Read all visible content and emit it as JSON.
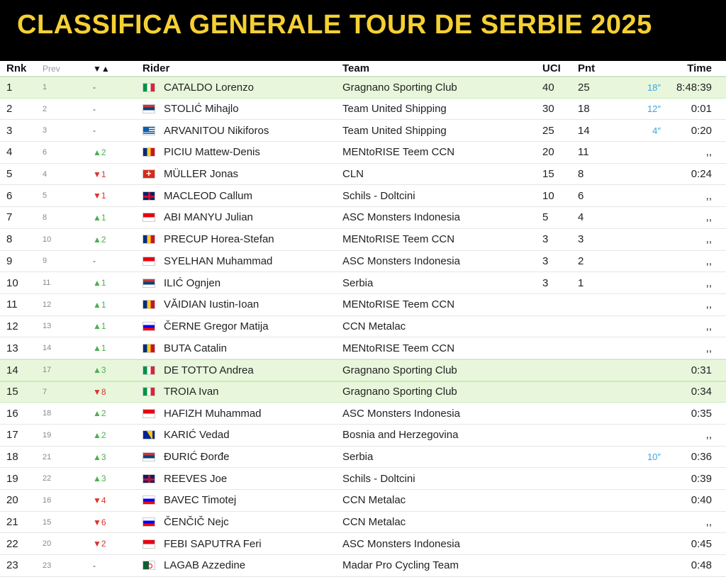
{
  "page": {
    "title": "CLASSIFICA GENERALE TOUR DE SERBIE 2025"
  },
  "colors": {
    "title": "#f5d033",
    "header_bg": "#000000",
    "highlight": "#e8f7dc",
    "up": "#4caf50",
    "down": "#d9342b",
    "bonus": "#3aa6e0"
  },
  "columns": {
    "rnk": "Rnk",
    "prev": "Prev",
    "change": "▼▲",
    "rider": "Rider",
    "team": "Team",
    "uci": "UCI",
    "pnt": "Pnt",
    "time": "Time"
  },
  "rows": [
    {
      "rnk": "1",
      "prev": "1",
      "change": "-",
      "dir": "none",
      "flag": "italy-flag",
      "rider": "CATALDO Lorenzo",
      "team": "Gragnano Sporting Club",
      "uci": "40",
      "pnt": "25",
      "bonus": "18″",
      "time": "8:48:39",
      "highlight": true
    },
    {
      "rnk": "2",
      "prev": "2",
      "change": "-",
      "dir": "none",
      "flag": "serbia-flag",
      "rider": "STOLIĆ Mihajlo",
      "team": "Team United Shipping",
      "uci": "30",
      "pnt": "18",
      "bonus": "12″",
      "time": "0:01",
      "highlight": false
    },
    {
      "rnk": "3",
      "prev": "3",
      "change": "-",
      "dir": "none",
      "flag": "greece-flag",
      "rider": "ARVANITOU Nikiforos",
      "team": "Team United Shipping",
      "uci": "25",
      "pnt": "14",
      "bonus": "4″",
      "time": "0:20",
      "highlight": false
    },
    {
      "rnk": "4",
      "prev": "6",
      "change": "▲2",
      "dir": "up",
      "flag": "romania-flag",
      "rider": "PICIU Mattew-Denis",
      "team": "MENtoRISE Teem CCN",
      "uci": "20",
      "pnt": "11",
      "bonus": "",
      "time": ",,",
      "highlight": false
    },
    {
      "rnk": "5",
      "prev": "4",
      "change": "▼1",
      "dir": "down",
      "flag": "switzerland-flag",
      "rider": "MÜLLER Jonas",
      "team": "CLN",
      "uci": "15",
      "pnt": "8",
      "bonus": "",
      "time": "0:24",
      "highlight": false
    },
    {
      "rnk": "6",
      "prev": "5",
      "change": "▼1",
      "dir": "down",
      "flag": "uk-flag",
      "rider": "MACLEOD Callum",
      "team": "Schils - Doltcini",
      "uci": "10",
      "pnt": "6",
      "bonus": "",
      "time": ",,",
      "highlight": false
    },
    {
      "rnk": "7",
      "prev": "8",
      "change": "▲1",
      "dir": "up",
      "flag": "indonesia-flag",
      "rider": "ABI MANYU Julian",
      "team": "ASC Monsters Indonesia",
      "uci": "5",
      "pnt": "4",
      "bonus": "",
      "time": ",,",
      "highlight": false
    },
    {
      "rnk": "8",
      "prev": "10",
      "change": "▲2",
      "dir": "up",
      "flag": "romania-flag",
      "rider": "PRECUP Horea-Stefan",
      "team": "MENtoRISE Teem CCN",
      "uci": "3",
      "pnt": "3",
      "bonus": "",
      "time": ",,",
      "highlight": false
    },
    {
      "rnk": "9",
      "prev": "9",
      "change": "-",
      "dir": "none",
      "flag": "indonesia-flag",
      "rider": "SYELHAN Muhammad",
      "team": "ASC Monsters Indonesia",
      "uci": "3",
      "pnt": "2",
      "bonus": "",
      "time": ",,",
      "highlight": false
    },
    {
      "rnk": "10",
      "prev": "11",
      "change": "▲1",
      "dir": "up",
      "flag": "serbia-flag",
      "rider": "ILIĆ Ognjen",
      "team": "Serbia",
      "uci": "3",
      "pnt": "1",
      "bonus": "",
      "time": ",,",
      "highlight": false
    },
    {
      "rnk": "11",
      "prev": "12",
      "change": "▲1",
      "dir": "up",
      "flag": "romania-flag",
      "rider": "VĂIDIAN Iustin-Ioan",
      "team": "MENtoRISE Teem CCN",
      "uci": "",
      "pnt": "",
      "bonus": "",
      "time": ",,",
      "highlight": false
    },
    {
      "rnk": "12",
      "prev": "13",
      "change": "▲1",
      "dir": "up",
      "flag": "slovenia-flag",
      "rider": "ČERNE Gregor Matija",
      "team": "CCN Metalac",
      "uci": "",
      "pnt": "",
      "bonus": "",
      "time": ",,",
      "highlight": false
    },
    {
      "rnk": "13",
      "prev": "14",
      "change": "▲1",
      "dir": "up",
      "flag": "romania-flag",
      "rider": "BUTA Catalin",
      "team": "MENtoRISE Teem CCN",
      "uci": "",
      "pnt": "",
      "bonus": "",
      "time": ",,",
      "highlight": false
    },
    {
      "rnk": "14",
      "prev": "17",
      "change": "▲3",
      "dir": "up",
      "flag": "italy-flag",
      "rider": "DE TOTTO Andrea",
      "team": "Gragnano Sporting Club",
      "uci": "",
      "pnt": "",
      "bonus": "",
      "time": "0:31",
      "highlight": true
    },
    {
      "rnk": "15",
      "prev": "7",
      "change": "▼8",
      "dir": "down",
      "flag": "italy-flag",
      "rider": "TROIA Ivan",
      "team": "Gragnano Sporting Club",
      "uci": "",
      "pnt": "",
      "bonus": "",
      "time": "0:34",
      "highlight": true
    },
    {
      "rnk": "16",
      "prev": "18",
      "change": "▲2",
      "dir": "up",
      "flag": "indonesia-flag",
      "rider": "HAFIZH Muhammad",
      "team": "ASC Monsters Indonesia",
      "uci": "",
      "pnt": "",
      "bonus": "",
      "time": "0:35",
      "highlight": false
    },
    {
      "rnk": "17",
      "prev": "19",
      "change": "▲2",
      "dir": "up",
      "flag": "bosnia-flag",
      "rider": "KARIĆ Vedad",
      "team": "Bosnia and Herzegovina",
      "uci": "",
      "pnt": "",
      "bonus": "",
      "time": ",,",
      "highlight": false
    },
    {
      "rnk": "18",
      "prev": "21",
      "change": "▲3",
      "dir": "up",
      "flag": "serbia-flag",
      "rider": "ĐURIĆ Đorđe",
      "team": "Serbia",
      "uci": "",
      "pnt": "",
      "bonus": "10″",
      "time": "0:36",
      "highlight": false
    },
    {
      "rnk": "19",
      "prev": "22",
      "change": "▲3",
      "dir": "up",
      "flag": "uk-flag",
      "rider": "REEVES Joe",
      "team": "Schils - Doltcini",
      "uci": "",
      "pnt": "",
      "bonus": "",
      "time": "0:39",
      "highlight": false
    },
    {
      "rnk": "20",
      "prev": "16",
      "change": "▼4",
      "dir": "down",
      "flag": "slovenia-flag",
      "rider": "BAVEC Timotej",
      "team": "CCN Metalac",
      "uci": "",
      "pnt": "",
      "bonus": "",
      "time": "0:40",
      "highlight": false
    },
    {
      "rnk": "21",
      "prev": "15",
      "change": "▼6",
      "dir": "down",
      "flag": "slovenia-flag",
      "rider": "ČENČIČ Nejc",
      "team": "CCN Metalac",
      "uci": "",
      "pnt": "",
      "bonus": "",
      "time": ",,",
      "highlight": false
    },
    {
      "rnk": "22",
      "prev": "20",
      "change": "▼2",
      "dir": "down",
      "flag": "indonesia-flag",
      "rider": "FEBI SAPUTRA Feri",
      "team": "ASC Monsters Indonesia",
      "uci": "",
      "pnt": "",
      "bonus": "",
      "time": "0:45",
      "highlight": false
    },
    {
      "rnk": "23",
      "prev": "23",
      "change": "-",
      "dir": "none",
      "flag": "algeria-flag",
      "rider": "LAGAB Azzedine",
      "team": "Madar Pro Cycling Team",
      "uci": "",
      "pnt": "",
      "bonus": "",
      "time": "0:48",
      "highlight": false
    }
  ]
}
